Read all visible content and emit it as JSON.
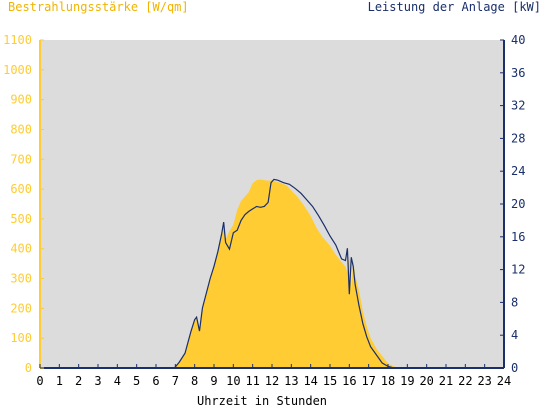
{
  "chart_data": {
    "type": "area",
    "left_axis_title": "Bestrahlungsstärke [W/qm]",
    "right_axis_title": "Leistung der Anlage [kW]",
    "xlabel": "Uhrzeit in Stunden",
    "xlim": [
      0,
      24
    ],
    "left_ylim": [
      0,
      1100
    ],
    "right_ylim": [
      0,
      40
    ],
    "x_ticks": [
      "0",
      "1",
      "2",
      "3",
      "4",
      "5",
      "6",
      "7",
      "8",
      "9",
      "10",
      "11",
      "12",
      "13",
      "14",
      "15",
      "16",
      "17",
      "18",
      "19",
      "20",
      "21",
      "22",
      "23",
      "24"
    ],
    "left_ticks": [
      "0",
      "100",
      "200",
      "300",
      "400",
      "500",
      "600",
      "700",
      "800",
      "900",
      "1000",
      "1100"
    ],
    "right_ticks": [
      "0",
      "4",
      "8",
      "12",
      "16",
      "20",
      "24",
      "28",
      "32",
      "36",
      "40"
    ],
    "grid": false,
    "colors": {
      "plot_bg": "#dcdcdc",
      "irradiance_fill": "#ffcc33",
      "power_line": "#1a2f6b",
      "left_axis": "#ffcc33",
      "right_axis": "#1a2f6b"
    },
    "series": [
      {
        "axis": "left",
        "style": "filled-area",
        "x": [
          0,
          6.95,
          7.2,
          7.5,
          7.8,
          8.0,
          8.1,
          8.25,
          8.4,
          8.6,
          8.8,
          9.0,
          9.2,
          9.4,
          9.5,
          9.6,
          9.8,
          10.0,
          10.2,
          10.4,
          10.6,
          10.8,
          11.0,
          11.2,
          11.4,
          11.6,
          11.8,
          12.0,
          12.2,
          12.5,
          12.8,
          13.0,
          13.3,
          13.6,
          14.0,
          14.3,
          14.6,
          15.0,
          15.3,
          15.6,
          15.8,
          15.9,
          16.0,
          16.1,
          16.2,
          16.3,
          16.5,
          16.7,
          16.9,
          17.1,
          17.4,
          17.7,
          18.0,
          18.3,
          18.6,
          24
        ],
        "y": [
          0,
          0,
          20,
          50,
          120,
          160,
          170,
          125,
          200,
          250,
          300,
          340,
          390,
          450,
          470,
          430,
          460,
          480,
          530,
          560,
          575,
          590,
          620,
          630,
          632,
          630,
          628,
          630,
          625,
          620,
          610,
          595,
          575,
          550,
          510,
          470,
          440,
          410,
          380,
          355,
          340,
          320,
          380,
          260,
          360,
          310,
          260,
          190,
          140,
          100,
          65,
          40,
          15,
          5,
          0,
          0
        ]
      },
      {
        "axis": "right",
        "style": "line",
        "x": [
          0,
          6.95,
          7.2,
          7.5,
          7.8,
          8.0,
          8.1,
          8.25,
          8.4,
          8.6,
          8.8,
          9.0,
          9.2,
          9.4,
          9.5,
          9.6,
          9.8,
          10.0,
          10.2,
          10.4,
          10.6,
          10.8,
          11.0,
          11.2,
          11.4,
          11.6,
          11.8,
          11.95,
          12.1,
          12.3,
          12.6,
          12.9,
          13.2,
          13.5,
          13.8,
          14.1,
          14.4,
          14.7,
          15.0,
          15.3,
          15.6,
          15.8,
          15.9,
          16.0,
          16.1,
          16.2,
          16.3,
          16.5,
          16.7,
          16.9,
          17.1,
          17.4,
          17.7,
          18.0,
          18.3,
          18.6,
          24
        ],
        "y": [
          0,
          0,
          0.7,
          1.8,
          4.4,
          5.9,
          6.2,
          4.5,
          7.3,
          9.1,
          10.9,
          12.4,
          14.2,
          16.4,
          17.8,
          15.3,
          14.5,
          16.5,
          16.8,
          18.0,
          18.7,
          19.1,
          19.4,
          19.7,
          19.6,
          19.7,
          20.2,
          22.6,
          23.0,
          22.9,
          22.6,
          22.4,
          21.9,
          21.3,
          20.5,
          19.7,
          18.6,
          17.4,
          16.1,
          15.0,
          13.3,
          13.1,
          14.6,
          9.0,
          13.5,
          12.4,
          10.2,
          7.6,
          5.4,
          3.8,
          2.6,
          1.6,
          0.6,
          0.2,
          0,
          0,
          0
        ]
      }
    ]
  }
}
